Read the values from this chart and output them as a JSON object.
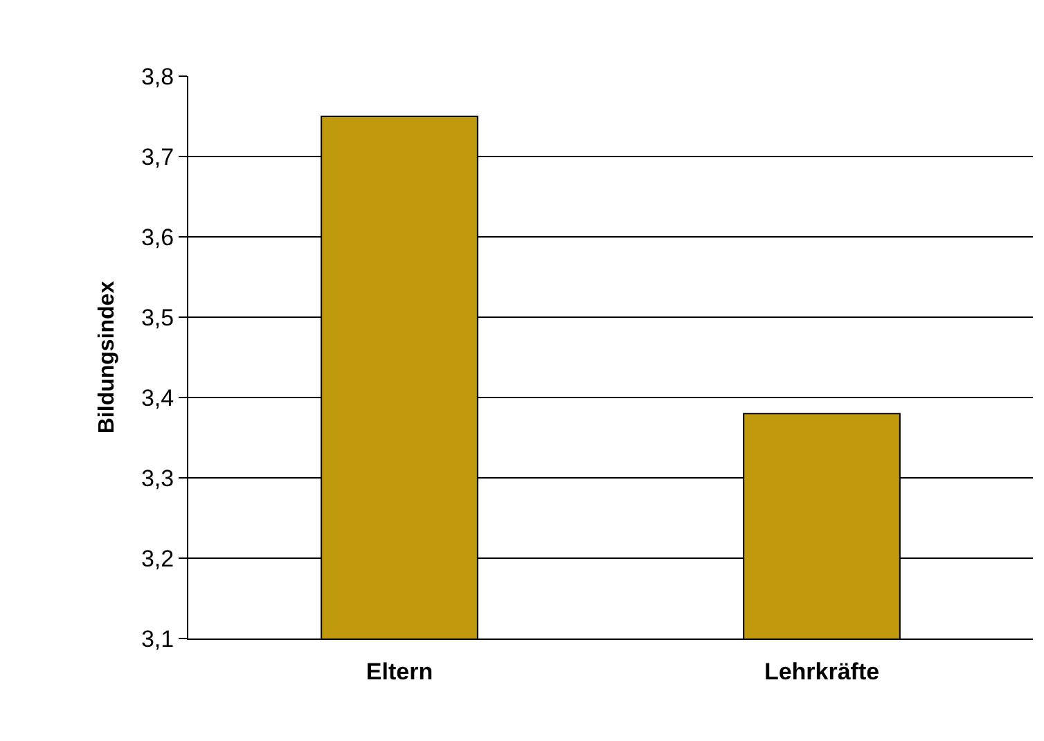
{
  "chart_data": {
    "type": "bar",
    "ylabel": "Bildungsindex",
    "categories": [
      "Eltern",
      "Lehrkräfte"
    ],
    "values": [
      3.75,
      3.38
    ],
    "color": "#c09a0c",
    "ylim": [
      3.1,
      3.8
    ],
    "yticks": [
      {
        "value": 3.1,
        "label": "3,1"
      },
      {
        "value": 3.2,
        "label": "3,2"
      },
      {
        "value": 3.3,
        "label": "3,3"
      },
      {
        "value": 3.4,
        "label": "3,4"
      },
      {
        "value": 3.5,
        "label": "3,5"
      },
      {
        "value": 3.6,
        "label": "3,6"
      },
      {
        "value": 3.7,
        "label": "3,7"
      },
      {
        "value": 3.8,
        "label": "3,8"
      }
    ],
    "grid": "y"
  }
}
